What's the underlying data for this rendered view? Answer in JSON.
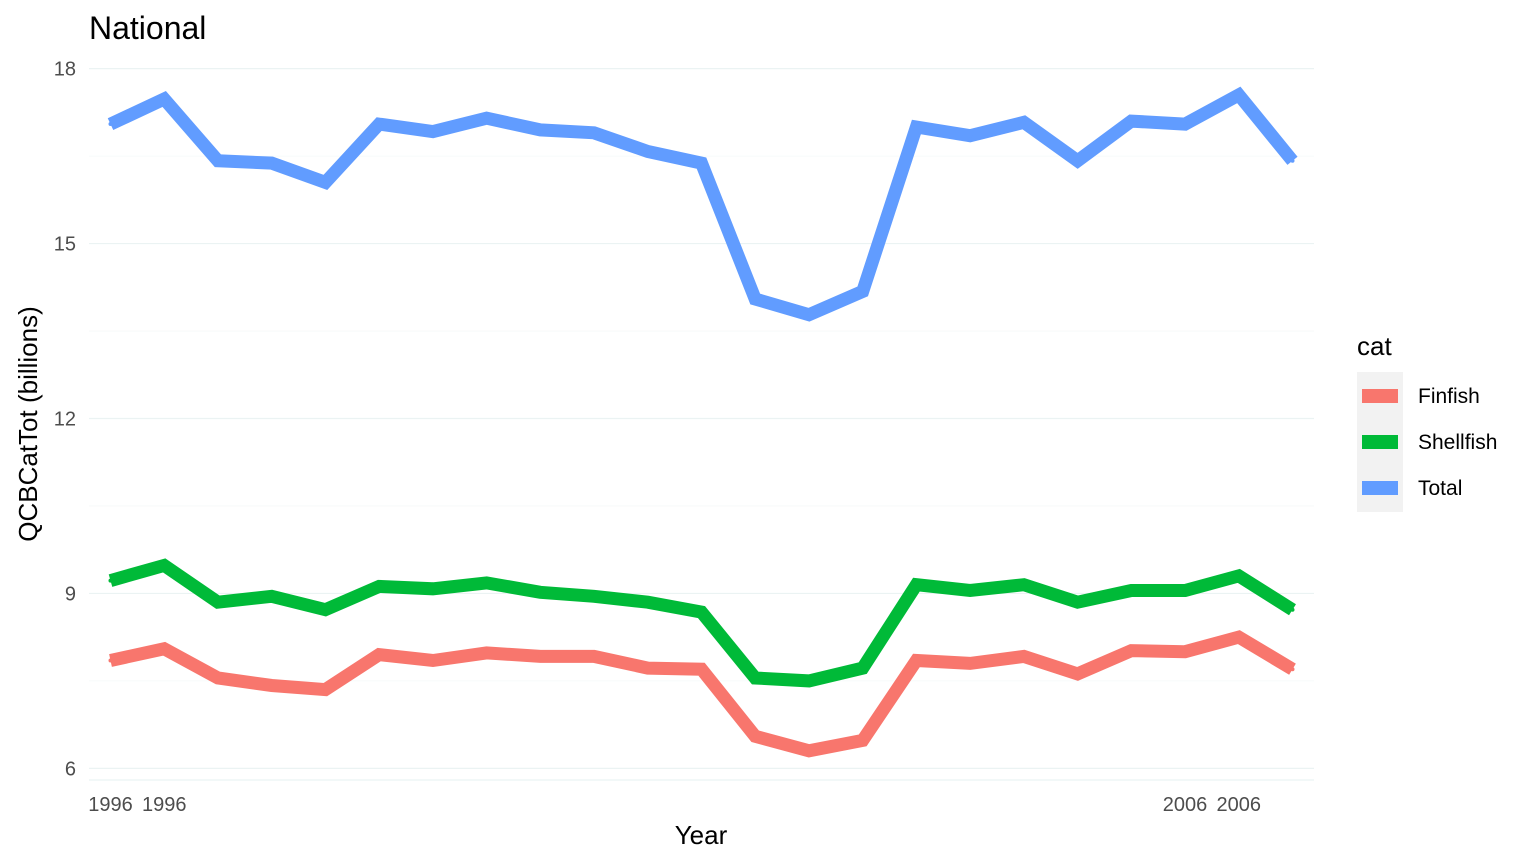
{
  "chart_data": {
    "type": "line",
    "title": "National",
    "xlabel": "Year",
    "ylabel": "QCBCatTot (billions)",
    "ylim": [
      5.8,
      18.2
    ],
    "yticks": [
      6,
      9,
      12,
      15,
      18
    ],
    "x_tick_labels": [
      {
        "label": "1996",
        "at": 1
      },
      {
        "label": "1996",
        "at": 2
      },
      {
        "label": "2006",
        "at": 21
      },
      {
        "label": "2006",
        "at": 22
      }
    ],
    "x": [
      1,
      2,
      3,
      4,
      5,
      6,
      7,
      8,
      9,
      10,
      11,
      12,
      13,
      14,
      15,
      16,
      17,
      18,
      19,
      20,
      21,
      22,
      23
    ],
    "grid": true,
    "legend": {
      "title": "cat",
      "position": "right"
    },
    "series": [
      {
        "name": "Finfish",
        "color": "#F8766D",
        "values": [
          7.85,
          8.05,
          7.55,
          7.42,
          7.35,
          7.95,
          7.85,
          7.98,
          7.92,
          7.92,
          7.72,
          7.7,
          6.55,
          6.3,
          6.48,
          7.85,
          7.8,
          7.92,
          7.62,
          8.02,
          8.0,
          8.25,
          7.7
        ]
      },
      {
        "name": "Shellfish",
        "color": "#00BA38",
        "values": [
          9.22,
          9.48,
          8.85,
          8.95,
          8.72,
          9.12,
          9.08,
          9.18,
          9.02,
          8.95,
          8.85,
          8.68,
          7.55,
          7.5,
          7.72,
          9.15,
          9.05,
          9.15,
          8.85,
          9.05,
          9.05,
          9.3,
          8.72
        ]
      },
      {
        "name": "Total",
        "color": "#619CFF",
        "values": [
          17.05,
          17.48,
          16.42,
          16.38,
          16.05,
          17.05,
          16.92,
          17.15,
          16.95,
          16.9,
          16.58,
          16.38,
          14.05,
          13.78,
          14.18,
          17.0,
          16.85,
          17.08,
          16.42,
          17.1,
          17.05,
          17.55,
          16.42
        ]
      }
    ]
  }
}
